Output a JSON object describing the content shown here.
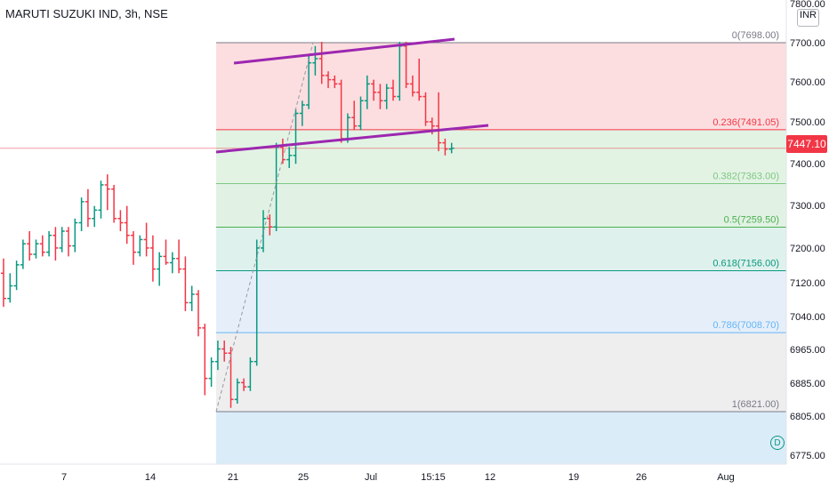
{
  "header": {
    "symbol_title": "MARUTI SUZUKI IND, 3h, NSE",
    "currency_label": "INR"
  },
  "last_price": "7447.10",
  "d_button": "D",
  "price_axis": {
    "ticks": [
      "7800.00",
      "7700.00",
      "7600.00",
      "7500.00",
      "7400.00",
      "7300.00",
      "7200.00",
      "7120.00",
      "7040.00",
      "6965.00",
      "6885.00",
      "6805.00",
      "6775.00"
    ]
  },
  "time_axis": {
    "ticks": [
      "7",
      "14",
      "21",
      "25",
      "Jul",
      "15:15",
      "12",
      "19",
      "26",
      "Aug"
    ]
  },
  "fibonacci": {
    "levels": [
      {
        "label": "0(7698.00)",
        "price": 7698.0,
        "color": "#787b86"
      },
      {
        "label": "0.236(7491.05)",
        "price": 7491.05,
        "color": "#f23645"
      },
      {
        "label": "0.382(7363.00)",
        "price": 7363.0,
        "color": "#81c784"
      },
      {
        "label": "0.5(7259.50)",
        "price": 7259.5,
        "color": "#4caf50"
      },
      {
        "label": "0.618(7156.00)",
        "price": 7156.0,
        "color": "#089981"
      },
      {
        "label": "0.786(7008.70)",
        "price": 7008.7,
        "color": "#64b5f6"
      },
      {
        "label": "1(6821.00)",
        "price": 6821.0,
        "color": "#787b86"
      }
    ]
  },
  "colors": {
    "up": "#089981",
    "down": "#f23645",
    "channel": "#9c27b0",
    "price_line": "#f23645"
  },
  "chart_data": {
    "type": "ohlc",
    "instrument": "MARUTI SUZUKI IND",
    "interval": "3h",
    "exchange": "NSE",
    "last": 7447.1,
    "ohlc": [
      {
        "o": 7150,
        "h": 7185,
        "l": 7070,
        "c": 7090
      },
      {
        "o": 7090,
        "h": 7150,
        "l": 7080,
        "c": 7120
      },
      {
        "o": 7120,
        "h": 7180,
        "l": 7110,
        "c": 7170
      },
      {
        "o": 7170,
        "h": 7230,
        "l": 7160,
        "c": 7220
      },
      {
        "o": 7220,
        "h": 7250,
        "l": 7180,
        "c": 7195
      },
      {
        "o": 7195,
        "h": 7230,
        "l": 7185,
        "c": 7220
      },
      {
        "o": 7220,
        "h": 7240,
        "l": 7190,
        "c": 7200
      },
      {
        "o": 7200,
        "h": 7250,
        "l": 7190,
        "c": 7240
      },
      {
        "o": 7240,
        "h": 7260,
        "l": 7180,
        "c": 7210
      },
      {
        "o": 7210,
        "h": 7260,
        "l": 7200,
        "c": 7250
      },
      {
        "o": 7250,
        "h": 7260,
        "l": 7190,
        "c": 7215
      },
      {
        "o": 7215,
        "h": 7280,
        "l": 7200,
        "c": 7270
      },
      {
        "o": 7270,
        "h": 7330,
        "l": 7250,
        "c": 7320
      },
      {
        "o": 7320,
        "h": 7350,
        "l": 7260,
        "c": 7280
      },
      {
        "o": 7280,
        "h": 7310,
        "l": 7260,
        "c": 7300
      },
      {
        "o": 7300,
        "h": 7370,
        "l": 7280,
        "c": 7360
      },
      {
        "o": 7360,
        "h": 7385,
        "l": 7300,
        "c": 7350
      },
      {
        "o": 7350,
        "h": 7360,
        "l": 7270,
        "c": 7280
      },
      {
        "o": 7280,
        "h": 7300,
        "l": 7250,
        "c": 7270
      },
      {
        "o": 7270,
        "h": 7310,
        "l": 7220,
        "c": 7240
      },
      {
        "o": 7240,
        "h": 7250,
        "l": 7170,
        "c": 7200
      },
      {
        "o": 7200,
        "h": 7240,
        "l": 7190,
        "c": 7230
      },
      {
        "o": 7230,
        "h": 7270,
        "l": 7190,
        "c": 7210
      },
      {
        "o": 7210,
        "h": 7240,
        "l": 7130,
        "c": 7160
      },
      {
        "o": 7160,
        "h": 7200,
        "l": 7120,
        "c": 7190
      },
      {
        "o": 7190,
        "h": 7230,
        "l": 7170,
        "c": 7175
      },
      {
        "o": 7175,
        "h": 7200,
        "l": 7150,
        "c": 7185
      },
      {
        "o": 7185,
        "h": 7230,
        "l": 7150,
        "c": 7160
      },
      {
        "o": 7160,
        "h": 7190,
        "l": 7060,
        "c": 7080
      },
      {
        "o": 7080,
        "h": 7120,
        "l": 7060,
        "c": 7100
      },
      {
        "o": 7100,
        "h": 7110,
        "l": 7000,
        "c": 7020
      },
      {
        "o": 7020,
        "h": 7030,
        "l": 6860,
        "c": 6900
      },
      {
        "o": 6900,
        "h": 6950,
        "l": 6880,
        "c": 6940
      },
      {
        "o": 6940,
        "h": 6990,
        "l": 6920,
        "c": 6970
      },
      {
        "o": 6970,
        "h": 6990,
        "l": 6940,
        "c": 6960
      },
      {
        "o": 6960,
        "h": 6975,
        "l": 6830,
        "c": 6850
      },
      {
        "o": 6850,
        "h": 6900,
        "l": 6840,
        "c": 6890
      },
      {
        "o": 6890,
        "h": 6900,
        "l": 6870,
        "c": 6880
      },
      {
        "o": 6880,
        "h": 6950,
        "l": 6870,
        "c": 6940
      },
      {
        "o": 6940,
        "h": 7230,
        "l": 6930,
        "c": 7210
      },
      {
        "o": 7210,
        "h": 7300,
        "l": 7200,
        "c": 7280
      },
      {
        "o": 7280,
        "h": 7290,
        "l": 7240,
        "c": 7260
      },
      {
        "o": 7260,
        "h": 7460,
        "l": 7250,
        "c": 7450
      },
      {
        "o": 7450,
        "h": 7470,
        "l": 7410,
        "c": 7420
      },
      {
        "o": 7420,
        "h": 7450,
        "l": 7400,
        "c": 7430
      },
      {
        "o": 7430,
        "h": 7540,
        "l": 7410,
        "c": 7530
      },
      {
        "o": 7530,
        "h": 7560,
        "l": 7500,
        "c": 7550
      },
      {
        "o": 7550,
        "h": 7670,
        "l": 7540,
        "c": 7650
      },
      {
        "o": 7650,
        "h": 7690,
        "l": 7620,
        "c": 7660
      },
      {
        "o": 7660,
        "h": 7700,
        "l": 7600,
        "c": 7620
      },
      {
        "o": 7620,
        "h": 7630,
        "l": 7590,
        "c": 7610
      },
      {
        "o": 7610,
        "h": 7620,
        "l": 7590,
        "c": 7600
      },
      {
        "o": 7600,
        "h": 7610,
        "l": 7460,
        "c": 7470
      },
      {
        "o": 7470,
        "h": 7530,
        "l": 7460,
        "c": 7520
      },
      {
        "o": 7520,
        "h": 7560,
        "l": 7490,
        "c": 7500
      },
      {
        "o": 7500,
        "h": 7570,
        "l": 7490,
        "c": 7560
      },
      {
        "o": 7560,
        "h": 7620,
        "l": 7540,
        "c": 7600
      },
      {
        "o": 7600,
        "h": 7610,
        "l": 7560,
        "c": 7580
      },
      {
        "o": 7580,
        "h": 7600,
        "l": 7540,
        "c": 7560
      },
      {
        "o": 7560,
        "h": 7600,
        "l": 7540,
        "c": 7590
      },
      {
        "o": 7590,
        "h": 7610,
        "l": 7560,
        "c": 7570
      },
      {
        "o": 7570,
        "h": 7700,
        "l": 7560,
        "c": 7690
      },
      {
        "o": 7690,
        "h": 7700,
        "l": 7590,
        "c": 7600
      },
      {
        "o": 7600,
        "h": 7620,
        "l": 7570,
        "c": 7580
      },
      {
        "o": 7580,
        "h": 7660,
        "l": 7560,
        "c": 7570
      },
      {
        "o": 7570,
        "h": 7580,
        "l": 7500,
        "c": 7510
      },
      {
        "o": 7510,
        "h": 7520,
        "l": 7480,
        "c": 7500
      },
      {
        "o": 7500,
        "h": 7580,
        "l": 7440,
        "c": 7460
      },
      {
        "o": 7460,
        "h": 7470,
        "l": 7430,
        "c": 7445
      },
      {
        "o": 7445,
        "h": 7460,
        "l": 7435,
        "c": 7447.1
      }
    ]
  }
}
